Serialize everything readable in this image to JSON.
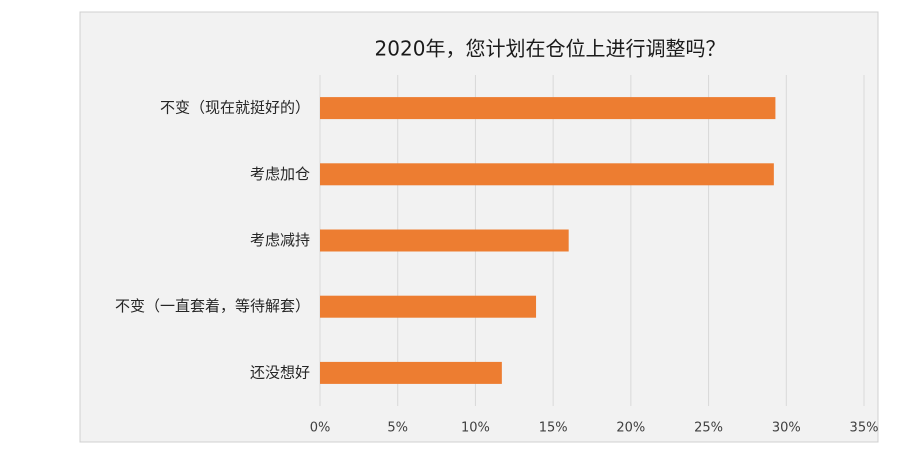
{
  "chart_data": {
    "type": "hbar",
    "title": "2020年，您计划在仓位上进行调整吗？",
    "categories": [
      "不变（现在就挺好的）",
      "考虑加仓",
      "考虑减持",
      "不变（一直套着，等待解套）",
      "还没想好"
    ],
    "values": [
      29.3,
      29.2,
      16.0,
      13.9,
      11.7
    ],
    "color": "#ed7d31",
    "xlim": [
      0,
      35
    ],
    "xticks": [
      {
        "value": 0,
        "label": "0%"
      },
      {
        "value": 5,
        "label": "5%"
      },
      {
        "value": 10,
        "label": "10%"
      },
      {
        "value": 15,
        "label": "15%"
      },
      {
        "value": 20,
        "label": "20%"
      },
      {
        "value": 25,
        "label": "25%"
      },
      {
        "value": 30,
        "label": "30%"
      },
      {
        "value": 35,
        "label": "35%"
      }
    ],
    "grid": true
  }
}
